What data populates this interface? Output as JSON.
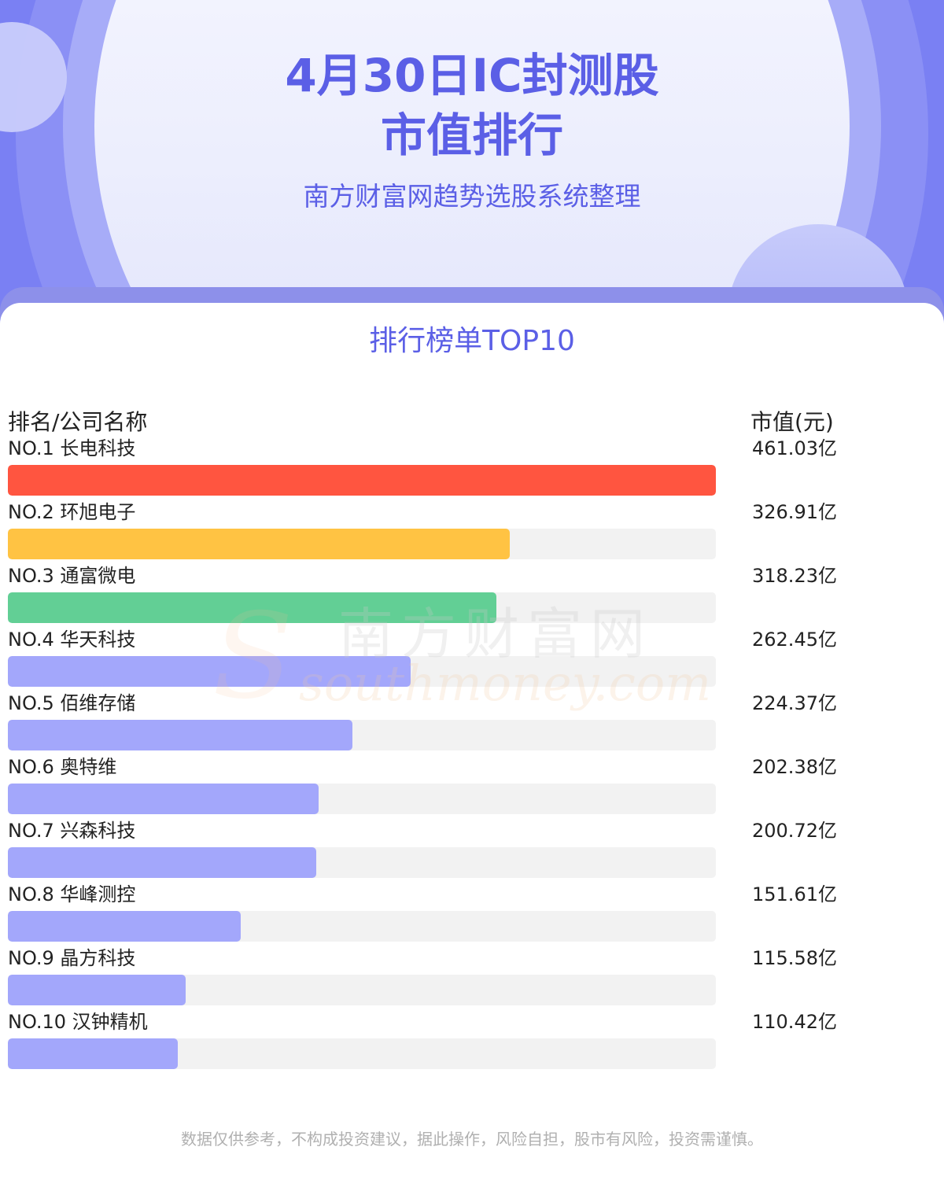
{
  "header": {
    "title_line1": "4月30日IC封测股",
    "title_line2": "市值排行",
    "subtitle": "南方财富网趋势选股系统整理"
  },
  "section_title": "排行榜单TOP10",
  "columns": {
    "name": "排名/公司名称",
    "value": "市值(元)"
  },
  "watermark": {
    "cn": "南方财富网",
    "en": "southmoney.com"
  },
  "footer": "数据仅供参考，不构成投资建议，据此操作，风险自担，股市有风险，投资需谨慎。",
  "colors": {
    "accent": "#5b5fe6",
    "rank1": "#ff5540",
    "rank2": "#ffc343",
    "rank3": "#62cf95",
    "rest": "#a3a7fb",
    "track": "#f2f2f2"
  },
  "chart_data": {
    "type": "bar",
    "orientation": "horizontal",
    "title": "4月30日IC封测股市值排行",
    "xlabel": "",
    "ylabel": "",
    "xlim": [
      0,
      461.03
    ],
    "unit": "亿",
    "items": [
      {
        "label": "NO.1 长电科技",
        "value": 461.03,
        "value_label": "461.03亿"
      },
      {
        "label": "NO.2 环旭电子",
        "value": 326.91,
        "value_label": "326.91亿"
      },
      {
        "label": "NO.3 通富微电",
        "value": 318.23,
        "value_label": "318.23亿"
      },
      {
        "label": "NO.4 华天科技",
        "value": 262.45,
        "value_label": "262.45亿"
      },
      {
        "label": "NO.5 佰维存储",
        "value": 224.37,
        "value_label": "224.37亿"
      },
      {
        "label": "NO.6 奥特维",
        "value": 202.38,
        "value_label": "202.38亿"
      },
      {
        "label": "NO.7 兴森科技",
        "value": 200.72,
        "value_label": "200.72亿"
      },
      {
        "label": "NO.8 华峰测控",
        "value": 151.61,
        "value_label": "151.61亿"
      },
      {
        "label": "NO.9 晶方科技",
        "value": 115.58,
        "value_label": "115.58亿"
      },
      {
        "label": "NO.10 汉钟精机",
        "value": 110.42,
        "value_label": "110.42亿"
      }
    ]
  }
}
